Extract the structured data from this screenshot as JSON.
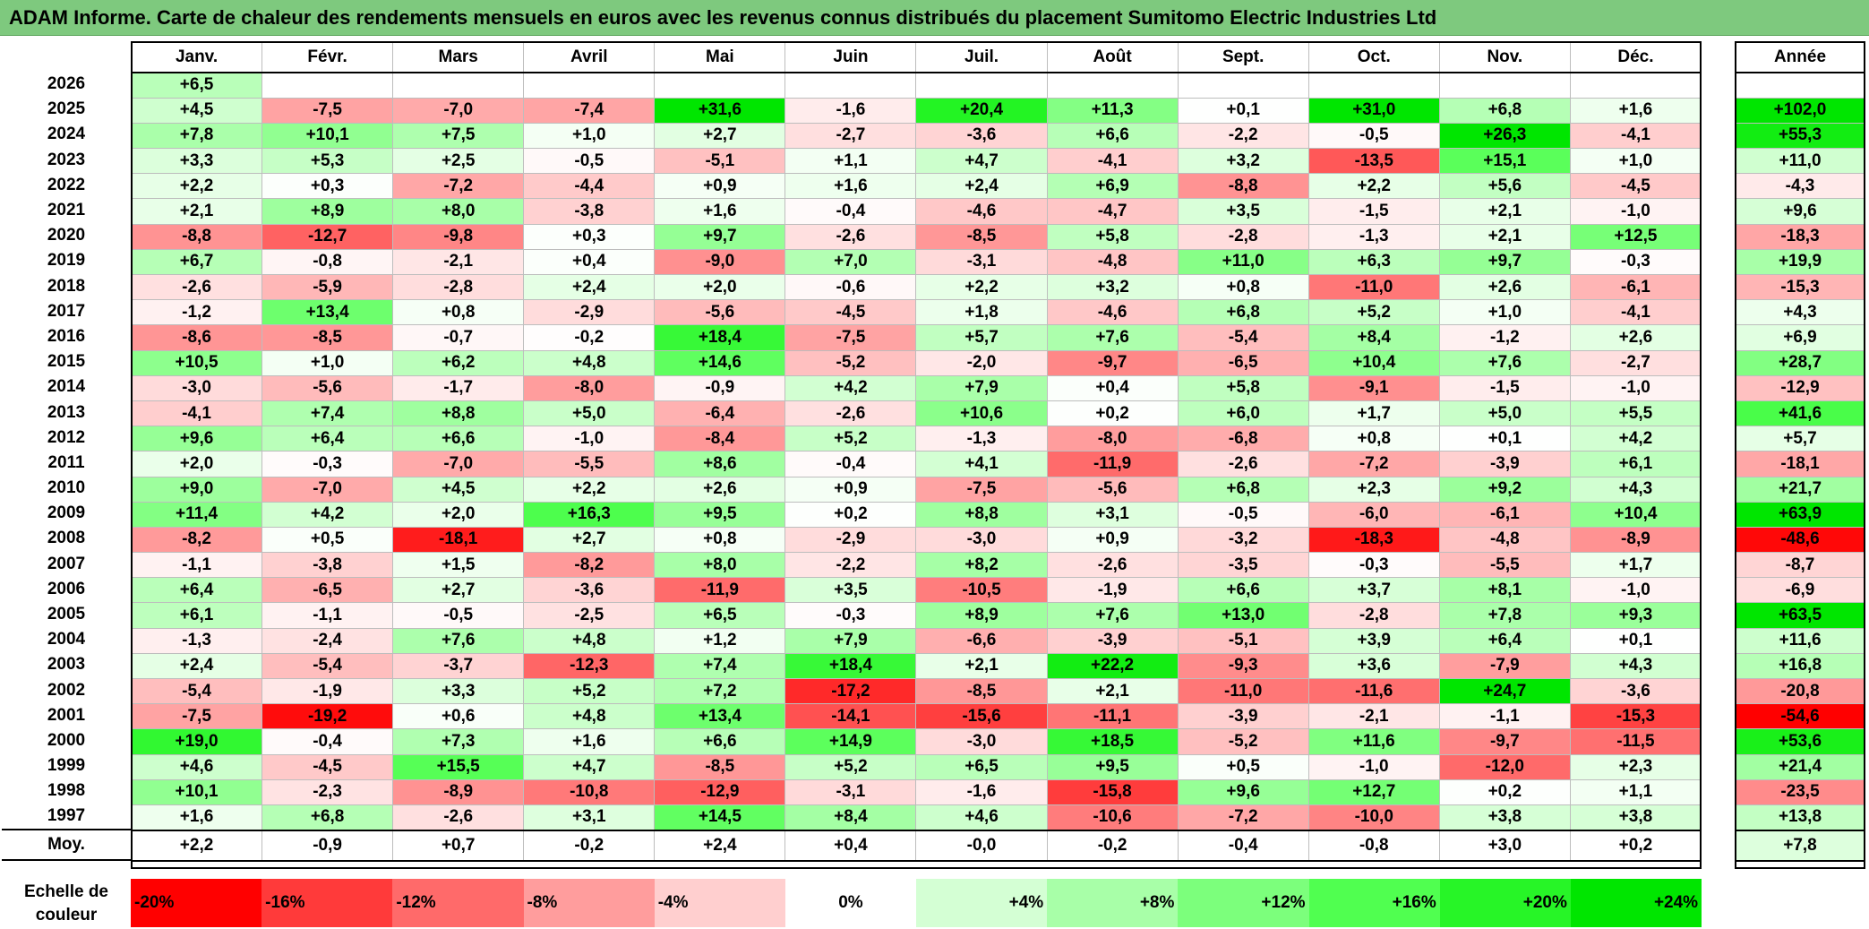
{
  "title": "ADAM Informe. Carte de chaleur des rendements mensuels en euros avec les revenus connus distribués du placement Sumitomo Electric Industries Ltd",
  "chart_data": {
    "type": "heatmap",
    "title": "ADAM Informe. Carte de chaleur des rendements mensuels en euros avec les revenus connus distribués du placement Sumitomo Electric Industries Ltd",
    "months": [
      "Janv.",
      "Févr.",
      "Mars",
      "Avril",
      "Mai",
      "Juin",
      "Juil.",
      "Août",
      "Sept.",
      "Oct.",
      "Nov.",
      "Déc."
    ],
    "year_header": "Année",
    "rows": [
      {
        "year": "2026",
        "months": [
          "+6,5",
          "",
          "",
          "",
          "",
          "",
          "",
          "",
          "",
          "",
          "",
          ""
        ],
        "annual": ""
      },
      {
        "year": "2025",
        "months": [
          "+4,5",
          "-7,5",
          "-7,0",
          "-7,4",
          "+31,6",
          "-1,6",
          "+20,4",
          "+11,3",
          "+0,1",
          "+31,0",
          "+6,8",
          "+1,6"
        ],
        "annual": "+102,0"
      },
      {
        "year": "2024",
        "months": [
          "+7,8",
          "+10,1",
          "+7,5",
          "+1,0",
          "+2,7",
          "-2,7",
          "-3,6",
          "+6,6",
          "-2,2",
          "-0,5",
          "+26,3",
          "-4,1"
        ],
        "annual": "+55,3"
      },
      {
        "year": "2023",
        "months": [
          "+3,3",
          "+5,3",
          "+2,5",
          "-0,5",
          "-5,1",
          "+1,1",
          "+4,7",
          "-4,1",
          "+3,2",
          "-13,5",
          "+15,1",
          "+1,0"
        ],
        "annual": "+11,0"
      },
      {
        "year": "2022",
        "months": [
          "+2,2",
          "+0,3",
          "-7,2",
          "-4,4",
          "+0,9",
          "+1,6",
          "+2,4",
          "+6,9",
          "-8,8",
          "+2,2",
          "+5,6",
          "-4,5"
        ],
        "annual": "-4,3"
      },
      {
        "year": "2021",
        "months": [
          "+2,1",
          "+8,9",
          "+8,0",
          "-3,8",
          "+1,6",
          "-0,4",
          "-4,6",
          "-4,7",
          "+3,5",
          "-1,5",
          "+2,1",
          "-1,0"
        ],
        "annual": "+9,6"
      },
      {
        "year": "2020",
        "months": [
          "-8,8",
          "-12,7",
          "-9,8",
          "+0,3",
          "+9,7",
          "-2,6",
          "-8,5",
          "+5,8",
          "-2,8",
          "-1,3",
          "+2,1",
          "+12,5"
        ],
        "annual": "-18,3"
      },
      {
        "year": "2019",
        "months": [
          "+6,7",
          "-0,8",
          "-2,1",
          "+0,4",
          "-9,0",
          "+7,0",
          "-3,1",
          "-4,8",
          "+11,0",
          "+6,3",
          "+9,7",
          "-0,3"
        ],
        "annual": "+19,9"
      },
      {
        "year": "2018",
        "months": [
          "-2,6",
          "-5,9",
          "-2,8",
          "+2,4",
          "+2,0",
          "-0,6",
          "+2,2",
          "+3,2",
          "+0,8",
          "-11,0",
          "+2,6",
          "-6,1"
        ],
        "annual": "-15,3"
      },
      {
        "year": "2017",
        "months": [
          "-1,2",
          "+13,4",
          "+0,8",
          "-2,9",
          "-5,6",
          "-4,5",
          "+1,8",
          "-4,6",
          "+6,8",
          "+5,2",
          "+1,0",
          "-4,1"
        ],
        "annual": "+4,3"
      },
      {
        "year": "2016",
        "months": [
          "-8,6",
          "-8,5",
          "-0,7",
          "-0,2",
          "+18,4",
          "-7,5",
          "+5,7",
          "+7,6",
          "-5,4",
          "+8,4",
          "-1,2",
          "+2,6"
        ],
        "annual": "+6,9"
      },
      {
        "year": "2015",
        "months": [
          "+10,5",
          "+1,0",
          "+6,2",
          "+4,8",
          "+14,6",
          "-5,2",
          "-2,0",
          "-9,7",
          "-6,5",
          "+10,4",
          "+7,6",
          "-2,7"
        ],
        "annual": "+28,7"
      },
      {
        "year": "2014",
        "months": [
          "-3,0",
          "-5,6",
          "-1,7",
          "-8,0",
          "-0,9",
          "+4,2",
          "+7,9",
          "+0,4",
          "+5,8",
          "-9,1",
          "-1,5",
          "-1,0"
        ],
        "annual": "-12,9"
      },
      {
        "year": "2013",
        "months": [
          "-4,1",
          "+7,4",
          "+8,8",
          "+5,0",
          "-6,4",
          "-2,6",
          "+10,6",
          "+0,2",
          "+6,0",
          "+1,7",
          "+5,0",
          "+5,5"
        ],
        "annual": "+41,6"
      },
      {
        "year": "2012",
        "months": [
          "+9,6",
          "+6,4",
          "+6,6",
          "-1,0",
          "-8,4",
          "+5,2",
          "-1,3",
          "-8,0",
          "-6,8",
          "+0,8",
          "+0,1",
          "+4,2"
        ],
        "annual": "+5,7"
      },
      {
        "year": "2011",
        "months": [
          "+2,0",
          "-0,3",
          "-7,0",
          "-5,5",
          "+8,6",
          "-0,4",
          "+4,1",
          "-11,9",
          "-2,6",
          "-7,2",
          "-3,9",
          "+6,1"
        ],
        "annual": "-18,1"
      },
      {
        "year": "2010",
        "months": [
          "+9,0",
          "-7,0",
          "+4,5",
          "+2,2",
          "+2,6",
          "+0,9",
          "-7,5",
          "-5,6",
          "+6,8",
          "+2,3",
          "+9,2",
          "+4,3"
        ],
        "annual": "+21,7"
      },
      {
        "year": "2009",
        "months": [
          "+11,4",
          "+4,2",
          "+2,0",
          "+16,3",
          "+9,5",
          "+0,2",
          "+8,8",
          "+3,1",
          "-0,5",
          "-6,0",
          "-6,1",
          "+10,4"
        ],
        "annual": "+63,9"
      },
      {
        "year": "2008",
        "months": [
          "-8,2",
          "+0,5",
          "-18,1",
          "+2,7",
          "+0,8",
          "-2,9",
          "-3,0",
          "+0,9",
          "-3,2",
          "-18,3",
          "-4,8",
          "-8,9"
        ],
        "annual": "-48,6"
      },
      {
        "year": "2007",
        "months": [
          "-1,1",
          "-3,8",
          "+1,5",
          "-8,2",
          "+8,0",
          "-2,2",
          "+8,2",
          "-2,6",
          "-3,5",
          "-0,3",
          "-5,5",
          "+1,7"
        ],
        "annual": "-8,7"
      },
      {
        "year": "2006",
        "months": [
          "+6,4",
          "-6,5",
          "+2,7",
          "-3,6",
          "-11,9",
          "+3,5",
          "-10,5",
          "-1,9",
          "+6,6",
          "+3,7",
          "+8,1",
          "-1,0"
        ],
        "annual": "-6,9"
      },
      {
        "year": "2005",
        "months": [
          "+6,1",
          "-1,1",
          "-0,5",
          "-2,5",
          "+6,5",
          "-0,3",
          "+8,9",
          "+7,6",
          "+13,0",
          "-2,8",
          "+7,8",
          "+9,3"
        ],
        "annual": "+63,5"
      },
      {
        "year": "2004",
        "months": [
          "-1,3",
          "-2,4",
          "+7,6",
          "+4,8",
          "+1,2",
          "+7,9",
          "-6,6",
          "-3,9",
          "-5,1",
          "+3,9",
          "+6,4",
          "+0,1"
        ],
        "annual": "+11,6"
      },
      {
        "year": "2003",
        "months": [
          "+2,4",
          "-5,4",
          "-3,7",
          "-12,3",
          "+7,4",
          "+18,4",
          "+2,1",
          "+22,2",
          "-9,3",
          "+3,6",
          "-7,9",
          "+4,3"
        ],
        "annual": "+16,8"
      },
      {
        "year": "2002",
        "months": [
          "-5,4",
          "-1,9",
          "+3,3",
          "+5,2",
          "+7,2",
          "-17,2",
          "-8,5",
          "+2,1",
          "-11,0",
          "-11,6",
          "+24,7",
          "-3,6"
        ],
        "annual": "-20,8"
      },
      {
        "year": "2001",
        "months": [
          "-7,5",
          "-19,2",
          "+0,6",
          "+4,8",
          "+13,4",
          "-14,1",
          "-15,6",
          "-11,1",
          "-3,9",
          "-2,1",
          "-1,1",
          "-15,3"
        ],
        "annual": "-54,6"
      },
      {
        "year": "2000",
        "months": [
          "+19,0",
          "-0,4",
          "+7,3",
          "+1,6",
          "+6,6",
          "+14,9",
          "-3,0",
          "+18,5",
          "-5,2",
          "+11,6",
          "-9,7",
          "-11,5"
        ],
        "annual": "+53,6"
      },
      {
        "year": "1999",
        "months": [
          "+4,6",
          "-4,5",
          "+15,5",
          "+4,7",
          "-8,5",
          "+5,2",
          "+6,5",
          "+9,5",
          "+0,5",
          "-1,0",
          "-12,0",
          "+2,3"
        ],
        "annual": "+21,4"
      },
      {
        "year": "1998",
        "months": [
          "+10,1",
          "-2,3",
          "-8,9",
          "-10,8",
          "-12,9",
          "-3,1",
          "-1,6",
          "-15,8",
          "+9,6",
          "+12,7",
          "+0,2",
          "+1,1"
        ],
        "annual": "-23,5"
      },
      {
        "year": "1997",
        "months": [
          "+1,6",
          "+6,8",
          "-2,6",
          "+3,1",
          "+14,5",
          "+8,4",
          "+4,6",
          "-10,6",
          "-7,2",
          "-10,0",
          "+3,8",
          "+3,8"
        ],
        "annual": "+13,8"
      }
    ],
    "average": {
      "label": "Moy.",
      "months": [
        "+2,2",
        "-0,9",
        "+0,7",
        "-0,2",
        "+2,4",
        "+0,4",
        "-0,0",
        "-0,2",
        "-0,4",
        "-0,8",
        "+3,0",
        "+0,2"
      ],
      "annual": "+7,8"
    },
    "color_scale": {
      "label": "Echelle de couleur",
      "stops": [
        {
          "label": "-20%",
          "value": -20,
          "color": "#ff0000"
        },
        {
          "label": "-16%",
          "value": -16,
          "color": "#ff3a3a"
        },
        {
          "label": "-12%",
          "value": -12,
          "color": "#ff6a6a"
        },
        {
          "label": "-8%",
          "value": -8,
          "color": "#ff9d9d"
        },
        {
          "label": "-4%",
          "value": -4,
          "color": "#ffcfcf"
        },
        {
          "label": "0%",
          "value": 0,
          "color": "#ffffff"
        },
        {
          "label": "+4%",
          "value": 4,
          "color": "#d4ffd4"
        },
        {
          "label": "+8%",
          "value": 8,
          "color": "#a8ffa8"
        },
        {
          "label": "+12%",
          "value": 12,
          "color": "#7cff7c"
        },
        {
          "label": "+16%",
          "value": 16,
          "color": "#50ff50"
        },
        {
          "label": "+20%",
          "value": 20,
          "color": "#27f527"
        },
        {
          "label": "+24%",
          "value": 24,
          "color": "#00e600"
        }
      ]
    }
  }
}
